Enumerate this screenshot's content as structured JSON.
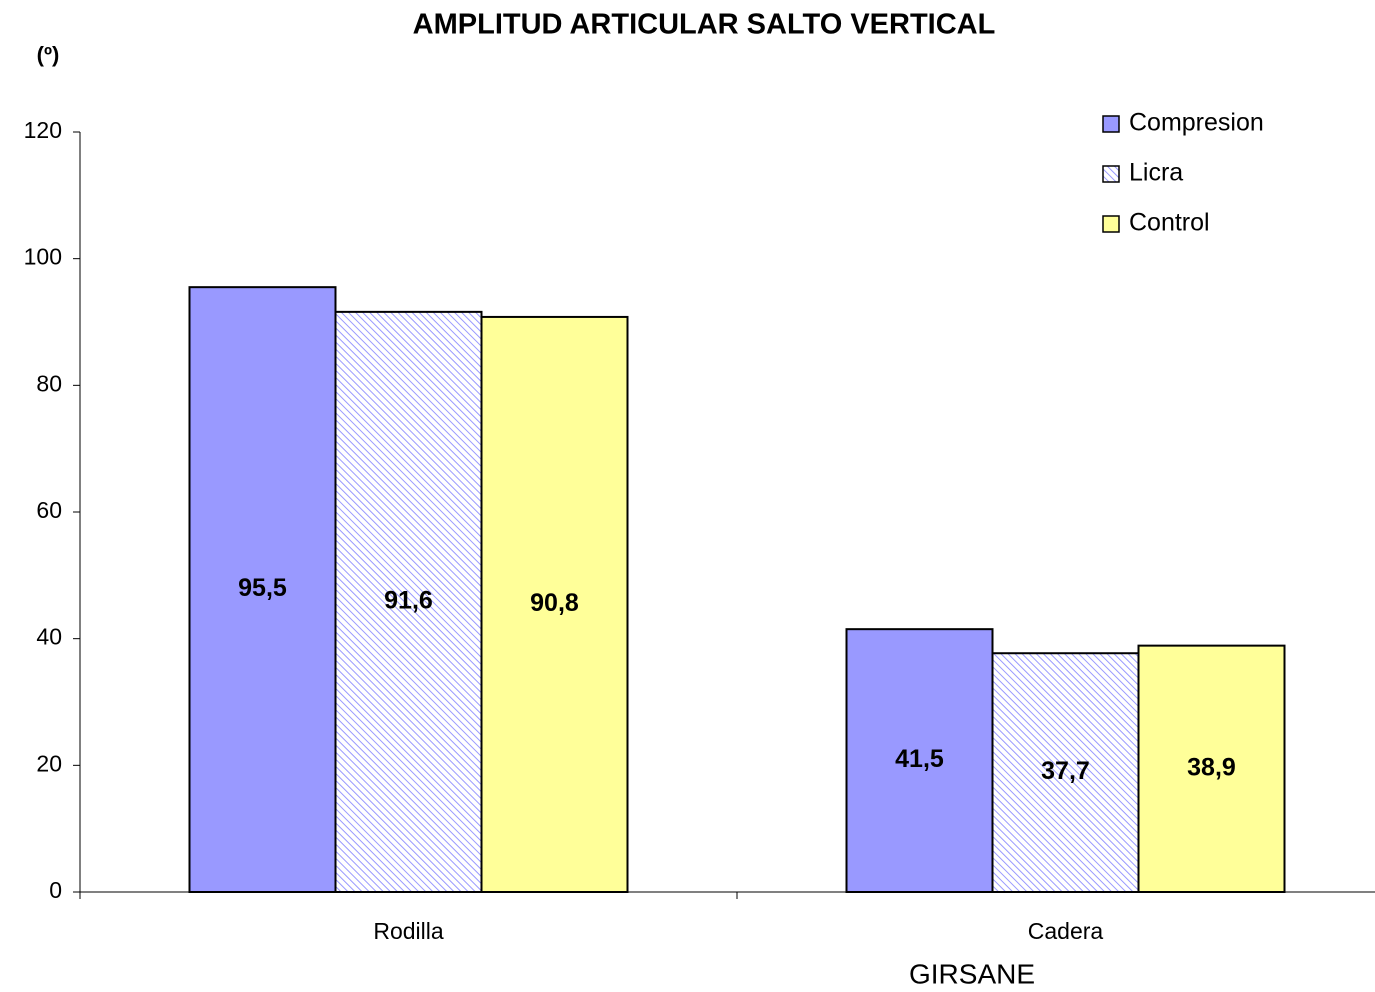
{
  "chart_data": {
    "type": "bar",
    "title": "AMPLITUD ARTICULAR SALTO VERTICAL",
    "y_label": "(º)",
    "annotation": "GIRSANE",
    "categories": [
      "Rodilla",
      "Cadera"
    ],
    "series": [
      {
        "name": "Compresion",
        "color": "#9999ff",
        "values": [
          95.5,
          41.5
        ],
        "value_labels": [
          "95,5",
          "41,5"
        ]
      },
      {
        "name": "Licra",
        "color": "#9999ff",
        "pattern": "hatch",
        "values": [
          91.6,
          37.7
        ],
        "value_labels": [
          "91,6",
          "37,7"
        ]
      },
      {
        "name": "Control",
        "color": "#ffff99",
        "values": [
          90.8,
          38.9
        ],
        "value_labels": [
          "90,8",
          "38,9"
        ]
      }
    ],
    "ylim": [
      0,
      120
    ],
    "yticks": [
      0,
      20,
      40,
      60,
      80,
      100,
      120
    ],
    "grid": false,
    "legend": "top-right"
  }
}
